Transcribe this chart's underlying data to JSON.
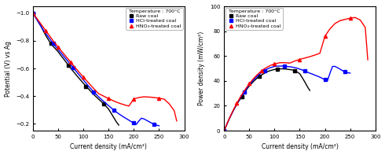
{
  "title_left": "Temperature : 700°C",
  "title_right": "Temperature : 700°C",
  "xlabel": "Current density (mA/cm²)",
  "ylabel_left": "Potential (V) vs Ag",
  "ylabel_right": "Power density (mW/cm²)",
  "legend_labels": [
    "Raw coal",
    "HCl-treated coal",
    "HNO₃-treated coal"
  ],
  "colors": [
    "black",
    "blue",
    "red"
  ],
  "jv_raw_x": [
    0,
    5,
    10,
    15,
    20,
    25,
    30,
    35,
    40,
    45,
    50,
    55,
    60,
    65,
    70,
    75,
    80,
    85,
    90,
    95,
    100,
    105,
    110,
    115,
    120,
    125,
    130,
    135,
    140,
    145,
    150,
    155,
    160,
    165,
    170
  ],
  "jv_raw_y": [
    -1.0,
    -0.97,
    -0.94,
    -0.91,
    -0.875,
    -0.84,
    -0.81,
    -0.78,
    -0.76,
    -0.74,
    -0.72,
    -0.695,
    -0.672,
    -0.648,
    -0.625,
    -0.6,
    -0.578,
    -0.556,
    -0.534,
    -0.513,
    -0.492,
    -0.472,
    -0.452,
    -0.432,
    -0.413,
    -0.395,
    -0.378,
    -0.362,
    -0.345,
    -0.325,
    -0.305,
    -0.275,
    -0.245,
    -0.215,
    -0.19
  ],
  "jv_hcl_x": [
    0,
    5,
    10,
    15,
    20,
    25,
    30,
    35,
    40,
    45,
    50,
    55,
    60,
    65,
    70,
    75,
    80,
    85,
    90,
    95,
    100,
    105,
    110,
    115,
    120,
    125,
    130,
    135,
    140,
    145,
    150,
    155,
    160,
    165,
    170,
    175,
    180,
    185,
    190,
    195,
    200,
    205,
    210,
    215,
    220,
    225,
    230,
    235,
    240,
    245,
    250
  ],
  "jv_hcl_y": [
    -1.0,
    -0.97,
    -0.94,
    -0.91,
    -0.88,
    -0.855,
    -0.83,
    -0.805,
    -0.78,
    -0.758,
    -0.736,
    -0.714,
    -0.692,
    -0.67,
    -0.648,
    -0.626,
    -0.604,
    -0.582,
    -0.56,
    -0.538,
    -0.516,
    -0.494,
    -0.472,
    -0.452,
    -0.432,
    -0.413,
    -0.395,
    -0.378,
    -0.362,
    -0.346,
    -0.33,
    -0.315,
    -0.3,
    -0.285,
    -0.272,
    -0.26,
    -0.248,
    -0.237,
    -0.226,
    -0.215,
    -0.205,
    -0.196,
    -0.22,
    -0.24,
    -0.235,
    -0.225,
    -0.215,
    -0.205,
    -0.198,
    -0.19,
    -0.185
  ],
  "jv_hno3_x": [
    0,
    5,
    10,
    15,
    20,
    25,
    30,
    35,
    40,
    45,
    50,
    55,
    60,
    65,
    70,
    75,
    80,
    85,
    90,
    95,
    100,
    110,
    120,
    130,
    140,
    150,
    160,
    170,
    180,
    190,
    200,
    210,
    220,
    230,
    240,
    250,
    260,
    270,
    280,
    285
  ],
  "jv_hno3_y": [
    -1.0,
    -0.975,
    -0.95,
    -0.925,
    -0.9,
    -0.875,
    -0.85,
    -0.825,
    -0.8,
    -0.777,
    -0.754,
    -0.732,
    -0.71,
    -0.688,
    -0.666,
    -0.644,
    -0.622,
    -0.6,
    -0.579,
    -0.558,
    -0.537,
    -0.496,
    -0.456,
    -0.418,
    -0.4,
    -0.382,
    -0.365,
    -0.35,
    -0.338,
    -0.328,
    -0.38,
    -0.39,
    -0.395,
    -0.393,
    -0.39,
    -0.385,
    -0.378,
    -0.345,
    -0.295,
    -0.22
  ],
  "jp_raw_x": [
    0,
    5,
    10,
    15,
    20,
    25,
    30,
    35,
    40,
    45,
    50,
    55,
    60,
    65,
    70,
    75,
    80,
    85,
    90,
    95,
    100,
    105,
    110,
    115,
    120,
    125,
    130,
    135,
    140,
    145,
    150,
    155,
    160,
    165,
    170
  ],
  "jp_raw_y": [
    0,
    4.8,
    9.4,
    13.6,
    17.5,
    21.0,
    24.3,
    27.3,
    30.4,
    33.3,
    36.0,
    38.2,
    40.3,
    42.1,
    43.8,
    45.0,
    46.2,
    47.3,
    48.1,
    48.7,
    49.2,
    49.6,
    49.7,
    49.7,
    49.6,
    49.4,
    49.1,
    48.9,
    48.3,
    47.1,
    45.8,
    42.6,
    39.2,
    35.5,
    32.3
  ],
  "jp_hcl_x": [
    0,
    5,
    10,
    15,
    20,
    25,
    30,
    35,
    40,
    45,
    50,
    55,
    60,
    65,
    70,
    75,
    80,
    85,
    90,
    95,
    100,
    105,
    110,
    115,
    120,
    125,
    130,
    135,
    140,
    145,
    150,
    155,
    160,
    165,
    170,
    175,
    180,
    185,
    190,
    195,
    200,
    205,
    210,
    215,
    220,
    225,
    230,
    235,
    240,
    245,
    250
  ],
  "jp_hcl_y": [
    0,
    4.8,
    9.4,
    13.6,
    17.6,
    21.4,
    24.9,
    28.2,
    31.2,
    34.1,
    36.8,
    39.3,
    41.5,
    43.6,
    45.4,
    47.0,
    48.3,
    49.5,
    50.4,
    51.1,
    51.6,
    51.9,
    51.9,
    52.0,
    51.8,
    51.6,
    51.4,
    51.1,
    50.7,
    50.2,
    49.5,
    48.8,
    48.0,
    47.1,
    46.2,
    45.5,
    44.6,
    43.9,
    43.0,
    42.0,
    41.0,
    40.2,
    46.2,
    51.6,
    51.7,
    50.6,
    49.5,
    48.2,
    47.5,
    46.6,
    46.3
  ],
  "jp_hno3_x": [
    0,
    5,
    10,
    15,
    20,
    25,
    30,
    35,
    40,
    45,
    50,
    55,
    60,
    65,
    70,
    75,
    80,
    85,
    90,
    95,
    100,
    110,
    120,
    130,
    140,
    150,
    160,
    170,
    180,
    190,
    200,
    210,
    220,
    230,
    240,
    250,
    260,
    270,
    280,
    285
  ],
  "jp_hno3_y": [
    0,
    4.9,
    9.5,
    13.9,
    18.0,
    21.9,
    25.5,
    28.9,
    32.0,
    35.0,
    37.7,
    40.3,
    42.6,
    44.8,
    46.6,
    48.4,
    49.8,
    51.0,
    52.1,
    53.0,
    53.7,
    54.6,
    54.7,
    54.3,
    56.0,
    57.3,
    58.4,
    59.5,
    60.8,
    62.3,
    76.0,
    81.9,
    86.2,
    88.5,
    89.5,
    90.5,
    91.0,
    89.0,
    83.0,
    57.0
  ],
  "xlim": [
    0,
    300
  ],
  "jv_ylim": [
    -0.15,
    -1.05
  ],
  "jp_ylim": [
    0,
    100
  ],
  "jv_yticks": [
    -0.2,
    -0.4,
    -0.6,
    -0.8,
    -1.0
  ],
  "jp_yticks": [
    0,
    20,
    40,
    60,
    80,
    100
  ],
  "xticks": [
    0,
    50,
    100,
    150,
    200,
    250,
    300
  ],
  "marker_size": 3,
  "linewidth": 1.0,
  "fontsize_label": 5.5,
  "fontsize_tick": 5,
  "fontsize_legend": 4.5
}
